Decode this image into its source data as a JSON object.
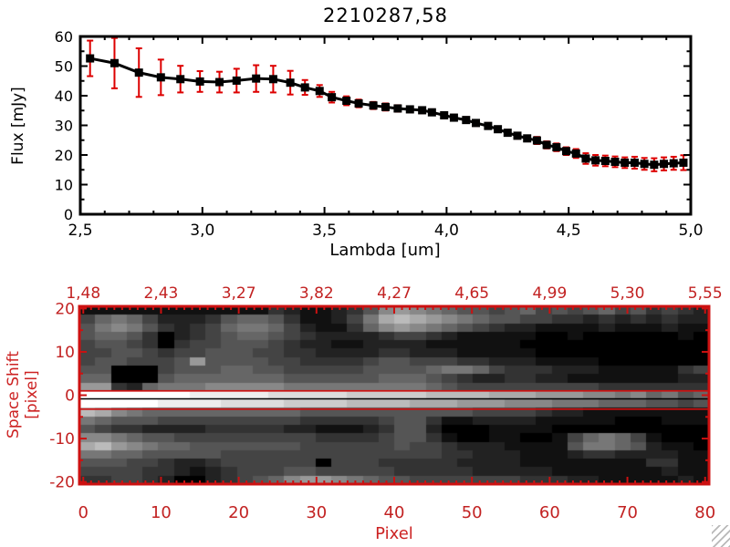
{
  "title": "2210287,58",
  "chart_data": [
    {
      "type": "line",
      "title": "2210287,58",
      "xlabel": "Lambda [um]",
      "ylabel": "Flux [mJy]",
      "xlim": [
        2.5,
        5.0
      ],
      "ylim": [
        0,
        60
      ],
      "grid": false,
      "xticks": {
        "values": [
          2.5,
          3.0,
          3.5,
          4.0,
          4.5,
          5.0
        ],
        "labels": [
          "2,5",
          "3,0",
          "3,5",
          "4,0",
          "4,5",
          "5,0"
        ],
        "minor_step": 0.1
      },
      "yticks": {
        "values": [
          0,
          10,
          20,
          30,
          40,
          50,
          60
        ],
        "labels": [
          "0",
          "10",
          "20",
          "30",
          "40",
          "50",
          "60"
        ],
        "minor_step": 5
      },
      "series": [
        {
          "name": "spectrum",
          "color": "#000000",
          "marker": "square",
          "error_color": "#dd0000",
          "x": [
            2.54,
            2.64,
            2.74,
            2.83,
            2.91,
            2.99,
            3.07,
            3.14,
            3.22,
            3.29,
            3.36,
            3.42,
            3.48,
            3.53,
            3.59,
            3.64,
            3.7,
            3.75,
            3.8,
            3.85,
            3.9,
            3.94,
            3.99,
            4.03,
            4.08,
            4.12,
            4.17,
            4.21,
            4.25,
            4.29,
            4.33,
            4.37,
            4.41,
            4.45,
            4.49,
            4.53,
            4.57,
            4.61,
            4.65,
            4.69,
            4.73,
            4.77,
            4.81,
            4.85,
            4.89,
            4.93,
            4.97
          ],
          "y": [
            52.6,
            51.0,
            47.8,
            46.2,
            45.6,
            44.8,
            44.6,
            45.1,
            45.8,
            45.6,
            44.4,
            42.8,
            41.6,
            39.5,
            38.3,
            37.4,
            36.7,
            36.2,
            35.7,
            35.4,
            35.1,
            34.4,
            33.4,
            32.6,
            31.8,
            30.8,
            29.8,
            28.7,
            27.5,
            26.5,
            25.6,
            24.9,
            23.4,
            22.6,
            21.3,
            20.5,
            18.8,
            18.2,
            18.0,
            17.7,
            17.4,
            17.4,
            17.0,
            16.7,
            17.0,
            17.2,
            17.4
          ],
          "yerr": [
            6.0,
            8.5,
            8.2,
            6.0,
            4.5,
            3.5,
            3.5,
            4.0,
            4.5,
            4.5,
            4.0,
            2.5,
            2.0,
            1.8,
            1.5,
            1.3,
            1.2,
            1.2,
            1.1,
            1.0,
            1.0,
            1.0,
            1.0,
            1.0,
            1.0,
            1.0,
            1.0,
            1.0,
            1.0,
            1.0,
            1.0,
            1.2,
            1.2,
            1.3,
            1.3,
            1.5,
            1.8,
            1.8,
            1.8,
            1.8,
            1.8,
            2.0,
            2.0,
            2.2,
            2.2,
            2.2,
            2.5
          ]
        }
      ]
    },
    {
      "type": "heatmap",
      "xlabel": "Pixel",
      "ylabel": "Space Shift [pixel]",
      "xlim": [
        0,
        81
      ],
      "ylim": [
        -20.5,
        20.5
      ],
      "axis_color": "#cc1111",
      "label_color": "#c22222",
      "top_axis": {
        "tick_values": [
          0,
          10,
          20,
          30,
          40,
          50,
          60,
          70,
          80
        ],
        "labels": [
          "1,48",
          "2,43",
          "3,27",
          "3,82",
          "4,27",
          "4,65",
          "4,99",
          "5,30",
          "5,55"
        ]
      },
      "xticks": {
        "values": [
          0,
          10,
          20,
          30,
          40,
          50,
          60,
          70,
          80
        ],
        "labels": [
          "0",
          "10",
          "20",
          "30",
          "40",
          "50",
          "60",
          "70",
          "80"
        ],
        "minor_step": 1
      },
      "yticks": {
        "values": [
          20,
          10,
          0,
          -10,
          -20
        ],
        "labels": [
          "20",
          "10",
          "0",
          "-10",
          "-20"
        ],
        "minor_step": 5
      },
      "overlay_lines": {
        "red_values": [
          1.0,
          -3.2
        ],
        "black_values": [
          -0.85
        ]
      },
      "palette": "grayscale",
      "image_rows": [
        "1111111111113211235898765545645456453432",
        "4676422235665311247aba987655443323232322",
        "5787532346776421136898765432211112111211",
        "5665302345665432222344321111100100000010",
        "4554303445554322112222111111000000000000",
        "4455434455544332222332221111100000000000",
        "4554445955554433334554443322211110000000",
        "5500045556655444445555677643332221111134",
        "6600056666666555555666543223322111111122",
        "9932677788888777777777654444444443333333",
        "fffffffeeeeedddddcccccbbbbaaa99988786756",
        "fffffeeeeddddccccbbbbaaa9998887776665545",
        "ba87666666666655555555555444432211111111",
        "7655544444444433333455311222211111000111",
        "5433222233333221112355200011110000000000",
        "8876554444444443333455310011001467641000",
        "ab98766555555544444454432221111577652110",
        "7766555554444444444444433222111233222211",
        "5554432234444440444333332222111111113311",
        "4444332123444554444433333222221111111211",
        "3344320023456899876554444444333221111121"
      ]
    }
  ],
  "decor": {
    "resize_grip": "window-resize-grip"
  }
}
